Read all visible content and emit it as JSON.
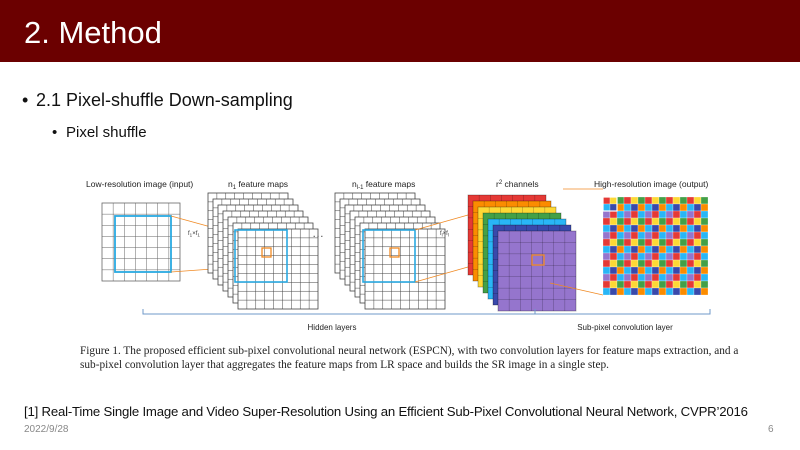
{
  "slide": {
    "title": "2. Method",
    "bullet1": "2.1 Pixel-shuffle Down-sampling",
    "bullet2": "Pixel shuffle",
    "bullet_symbol": "•",
    "reference": "[1] Real-Time Single Image and Video Super-Resolution Using an Efficient Sub-Pixel Convolutional Neural Network, CVPR’2016",
    "date": "2022/9/28",
    "page_number": "6",
    "header_color": "#6b0000"
  },
  "figure": {
    "label_lr": "Low-resolution image (input)",
    "label_n1": "n",
    "label_n1_sub": "1",
    "label_n1_rest": " feature maps",
    "label_nl1": "n",
    "label_nl1_sub": "l-1",
    "label_nl1_rest": " feature maps",
    "label_r2": "r",
    "label_r2_sup": "2",
    "label_r2_rest": " channels",
    "label_hr": "High-resolution image (output)",
    "kernel1": "f",
    "kernel1_sub": "1",
    "kernel1_mid": "×f",
    "kernel1_sub2": "1",
    "kernel2": "f",
    "kernel2_sub": "l",
    "kernel2_mid": "×f",
    "kernel2_sub2": "l",
    "ellipsis": "…",
    "hidden_layers": "Hidden layers",
    "subpixel_layer": "Sub-pixel convolution layer",
    "caption": "Figure 1. The proposed efficient sub-pixel convolutional neural network (ESPCN), with two convolution layers for feature maps extraction, and a sub-pixel convolution layer that aggregates the feature maps from LR space and builds the SR image in a single step.",
    "channel_colors": [
      "#e53935",
      "#fb8c00",
      "#fdd835",
      "#43a047",
      "#29b6f6",
      "#3949ab",
      "#9575cd"
    ],
    "accent_blue": "#29a9e1",
    "accent_orange": "#f08a24"
  }
}
